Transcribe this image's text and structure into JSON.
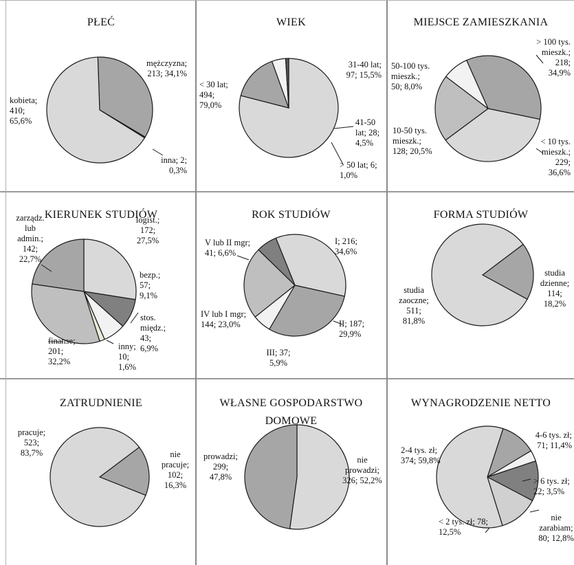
{
  "chart_data": [
    {
      "type": "pie",
      "title": "PŁEĆ",
      "slices": [
        {
          "label": "kobieta;\n410;\n65,6%",
          "value": 65.6,
          "color": "#d9d9d9"
        },
        {
          "label": "mężczyzna;\n213; 34,1%",
          "value": 34.1,
          "color": "#a6a6a6"
        },
        {
          "label": "inna; 2;\n0,3%",
          "value": 0.3,
          "color": "#4d4d4d"
        }
      ]
    },
    {
      "type": "pie",
      "title": "WIEK",
      "slices": [
        {
          "label": "< 30 lat;\n494;\n79,0%",
          "value": 79.0,
          "color": "#d9d9d9"
        },
        {
          "label": "31-40 lat;\n97; 15,5%",
          "value": 15.5,
          "color": "#a6a6a6"
        },
        {
          "label": "41-50\nlat; 28;\n4,5%",
          "value": 4.5,
          "color": "#f2f2f2"
        },
        {
          "label": "> 50 lat; 6;\n1,0%",
          "value": 1.0,
          "color": "#595959"
        }
      ]
    },
    {
      "type": "pie",
      "title": "MIEJSCE ZAMIESZKANIA",
      "slices": [
        {
          "label": "> 100 tys.\nmieszk.;\n218;\n34,9%",
          "value": 34.9,
          "color": "#a6a6a6"
        },
        {
          "label": "< 10 tys.\nmieszk.;\n229;\n36,6%",
          "value": 36.6,
          "color": "#d9d9d9"
        },
        {
          "label": "10-50 tys.\nmieszk.;\n128; 20,5%",
          "value": 20.5,
          "color": "#bfbfbf"
        },
        {
          "label": "50-100 tys.\nmieszk.;\n50; 8,0%",
          "value": 8.0,
          "color": "#f2f2f2"
        }
      ]
    },
    {
      "type": "pie",
      "title": "KIERUNEK STUDIÓW",
      "slices": [
        {
          "label": "logist.;\n172;\n27,5%",
          "value": 27.5,
          "color": "#d9d9d9"
        },
        {
          "label": "bezp.;\n57;\n9,1%",
          "value": 9.1,
          "color": "#808080"
        },
        {
          "label": "stos.\nmiędz.;\n43;\n6,9%",
          "value": 6.9,
          "color": "#f2f2f2"
        },
        {
          "label": "inny;\n10;\n1,6%",
          "value": 1.6,
          "color": "#e8ecd6"
        },
        {
          "label": "finanse;\n201;\n32,2%",
          "value": 32.2,
          "color": "#bfbfbf"
        },
        {
          "label": "zarządz.\nlub\nadmin.;\n142;\n22,7%",
          "value": 22.7,
          "color": "#a6a6a6"
        }
      ]
    },
    {
      "type": "pie",
      "title": "ROK STUDIÓW",
      "slices": [
        {
          "label": "I; 216;\n34,6%",
          "value": 34.6,
          "color": "#d9d9d9"
        },
        {
          "label": "II; 187;\n29,9%",
          "value": 29.9,
          "color": "#a6a6a6"
        },
        {
          "label": "III; 37;\n5,9%",
          "value": 5.9,
          "color": "#f2f2f2"
        },
        {
          "label": "IV lub I mgr;\n144; 23,0%",
          "value": 23.0,
          "color": "#bfbfbf"
        },
        {
          "label": "V lub II mgr;\n41; 6,6%",
          "value": 6.6,
          "color": "#808080"
        }
      ]
    },
    {
      "type": "pie",
      "title": "FORMA STUDIÓW",
      "slices": [
        {
          "label": "studia\ndzienne;\n114;\n18,2%",
          "value": 18.2,
          "color": "#a6a6a6"
        },
        {
          "label": "studia\nzaoczne;\n511;\n81,8%",
          "value": 81.8,
          "color": "#d9d9d9"
        }
      ]
    },
    {
      "type": "pie",
      "title": "ZATRUDNIENIE",
      "slices": [
        {
          "label": "nie\npracuje;\n102;\n16,3%",
          "value": 16.3,
          "color": "#a6a6a6"
        },
        {
          "label": "pracuje;\n523;\n83,7%",
          "value": 83.7,
          "color": "#d9d9d9"
        }
      ]
    },
    {
      "type": "pie",
      "title": "WŁASNE GOSPODARSTWO\nDOMOWE",
      "slices": [
        {
          "label": "nie\nprowadzi;\n326; 52,2%",
          "value": 52.2,
          "color": "#d9d9d9"
        },
        {
          "label": "prowadzi;\n299;\n47,8%",
          "value": 47.8,
          "color": "#a6a6a6"
        }
      ]
    },
    {
      "type": "pie",
      "title": "WYNAGRODZENIE NETTO",
      "slices": [
        {
          "label": "4-6 tys. zł;\n71; 11,4%",
          "value": 11.4,
          "color": "#a6a6a6"
        },
        {
          "label": "> 6 tys. zł;\n22; 3,5%",
          "value": 3.5,
          "color": "#f2f2f2"
        },
        {
          "label": "nie\nzarabiam;\n80; 12,8%",
          "value": 12.8,
          "color": "#808080"
        },
        {
          "label": "< 2 tys. zł; 78;\n12,5%",
          "value": 12.5,
          "color": "#d0d0d0"
        },
        {
          "label": "2-4 tys. zł;\n374; 59,8%",
          "value": 59.8,
          "color": "#d9d9d9"
        }
      ]
    }
  ]
}
